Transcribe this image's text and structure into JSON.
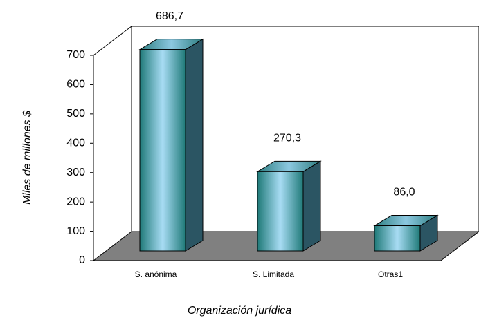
{
  "chart_data": {
    "type": "bar3d",
    "categories": [
      "S. anónima",
      "S. Limitada",
      "Otras1"
    ],
    "values": [
      686.7,
      270.3,
      86.0
    ],
    "value_labels": [
      "686,7",
      "270,3",
      "86,0"
    ],
    "ylabel": "Miles de millones $",
    "xlabel": "Organización jurídica",
    "ylim": [
      0,
      700
    ],
    "yticks": [
      0,
      100,
      200,
      300,
      400,
      500,
      600,
      700
    ],
    "color": "#2a8a8a"
  }
}
